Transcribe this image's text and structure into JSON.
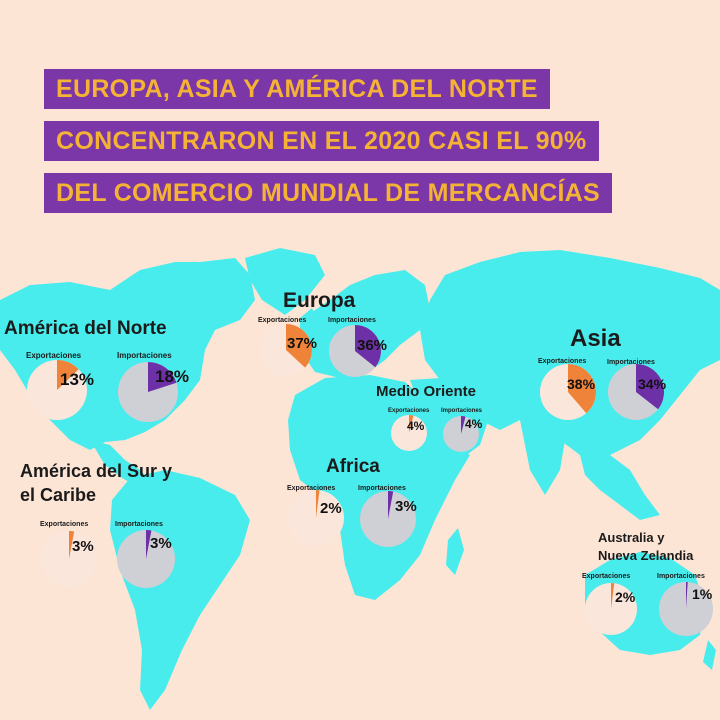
{
  "title": {
    "line1": "EUROPA, ASIA Y AMÉRICA DEL NORTE",
    "line2": "CONCENTRARON EN EL 2020 CASI EL 90%",
    "line3": "DEL COMERCIO MUNDIAL DE MERCANCÍAS"
  },
  "colors": {
    "background": "#fde5d6",
    "land": "#48ecec",
    "title_bg": "#7b36a8",
    "title_text": "#f5b335",
    "exports": "#f0833a",
    "imports": "#6e30a6",
    "export_pie_bg": "#fbe6dc",
    "import_pie_bg": "#cfcfd6"
  },
  "legend_words": {
    "exports": "Exportaciones",
    "imports": "Importaciones"
  },
  "regions": {
    "north_america": {
      "name": "América del Norte",
      "exports_label": "Exportaciones",
      "imports_label": "Importaciones",
      "exports": "13%",
      "imports": "18%",
      "exports_value": 13,
      "imports_value": 18
    },
    "south_america": {
      "name_line1": "América del Sur y",
      "name_line2": "el Caribe",
      "exports_label": "Exportaciones",
      "imports_label": "Importaciones",
      "exports": "3%",
      "imports": "3%",
      "exports_value": 3,
      "imports_value": 3
    },
    "europe": {
      "name": "Europa",
      "exports_label": "Exportaciones",
      "imports_label": "Importaciones",
      "exports": "37%",
      "imports": "36%",
      "exports_value": 37,
      "imports_value": 36
    },
    "middle_east": {
      "name": "Medio Oriente",
      "exports_label": "Exportaciones",
      "imports_label": "Importaciones",
      "exports": "4%",
      "imports": "4%",
      "exports_value": 4,
      "imports_value": 4
    },
    "africa": {
      "name": "Africa",
      "exports_label": "Exportaciones",
      "imports_label": "Importaciones",
      "exports": "2%",
      "imports": "3%",
      "exports_value": 2,
      "imports_value": 3
    },
    "asia": {
      "name": "Asia",
      "exports_label": "Exportaciones",
      "imports_label": "Importaciones",
      "exports": "38%",
      "imports": "34%",
      "exports_value": 38,
      "imports_value": 34
    },
    "oceania": {
      "name_line1": "Australia y",
      "name_line2": "Nueva Zelandia",
      "exports_label": "Exportaciones",
      "imports_label": "Importaciones",
      "exports": "2%",
      "imports": "1%",
      "exports_value": 2,
      "imports_value": 1
    }
  }
}
